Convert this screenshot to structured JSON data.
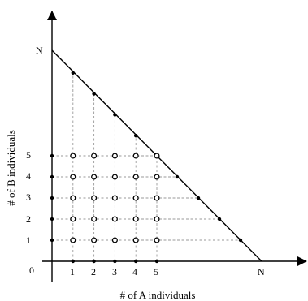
{
  "diagram": {
    "x_axis": {
      "title": "# of A individuals",
      "origin_label": "0",
      "end_label": "N",
      "ticks": [
        "1",
        "2",
        "3",
        "4",
        "5"
      ]
    },
    "y_axis": {
      "title": "# of B individuals",
      "end_label": "N",
      "ticks": [
        "1",
        "2",
        "3",
        "4",
        "5"
      ]
    },
    "lattice": {
      "shown_count": 5,
      "open_circle_region": "1..5 × 1..5",
      "filled_dots_on": [
        "x-axis",
        "y-axis",
        "diagonal a+b=N"
      ]
    },
    "colors": {
      "ink": "#000000",
      "dashed_grid": "#9a9a9a"
    }
  }
}
